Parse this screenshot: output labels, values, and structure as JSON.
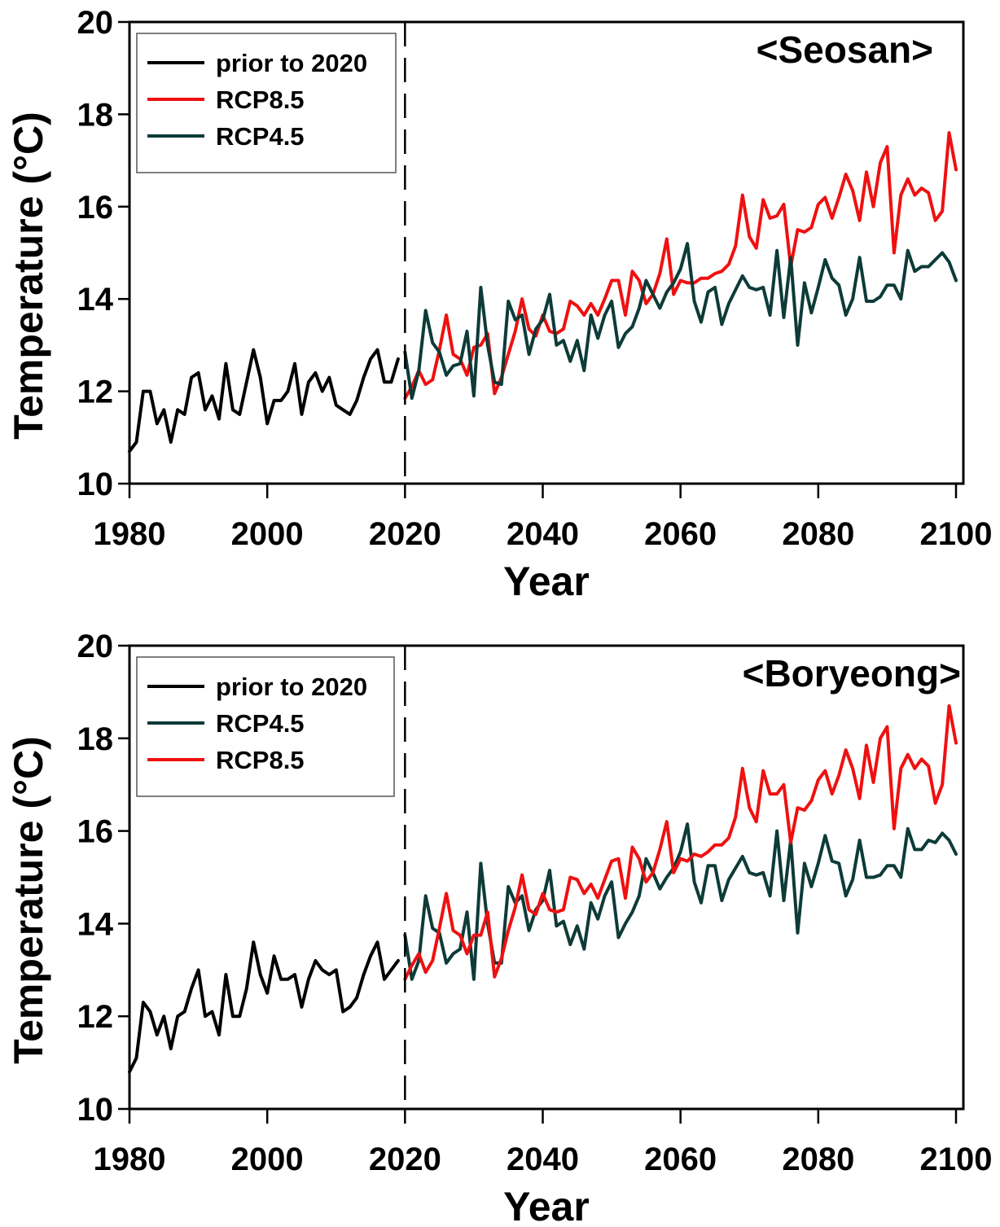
{
  "chart_data": [
    {
      "type": "line",
      "title": "<Seosan>",
      "xlabel": "Year",
      "ylabel": "Temperature (°C)",
      "xlim": [
        1980,
        2100
      ],
      "ylim": [
        10,
        20
      ],
      "xticks": [
        "1980",
        "2000",
        "2020",
        "2040",
        "2060",
        "2080",
        "2100"
      ],
      "yticks": [
        "10",
        "12",
        "14",
        "16",
        "18",
        "20"
      ],
      "grid": false,
      "legend_position": "top-left",
      "divider_year": 2020,
      "legend": [
        "prior to 2020",
        "RCP8.5",
        "RCP4.5"
      ],
      "series": [
        {
          "name": "prior to 2020",
          "color": "#000000",
          "x_start": 1980,
          "values": [
            10.7,
            10.9,
            12.0,
            12.0,
            11.3,
            11.6,
            10.9,
            11.6,
            11.5,
            12.3,
            12.4,
            11.6,
            11.9,
            11.4,
            12.6,
            11.6,
            11.5,
            12.2,
            12.9,
            12.3,
            11.3,
            11.8,
            11.8,
            12.0,
            12.6,
            11.5,
            12.2,
            12.4,
            12.0,
            12.3,
            11.7,
            11.6,
            11.5,
            11.8,
            12.3,
            12.7,
            12.9,
            12.2,
            12.2,
            12.7
          ]
        },
        {
          "name": "RCP8.5",
          "color": "#ee1111",
          "x_start": 2020,
          "values": [
            11.85,
            12.1,
            12.45,
            12.15,
            12.25,
            12.9,
            13.65,
            12.8,
            12.7,
            12.35,
            12.95,
            13.0,
            13.25,
            11.95,
            12.3,
            12.8,
            13.3,
            14.0,
            13.35,
            13.2,
            13.65,
            13.3,
            13.25,
            13.35,
            13.95,
            13.85,
            13.65,
            13.9,
            13.65,
            14.0,
            14.4,
            14.4,
            13.65,
            14.6,
            14.4,
            13.9,
            14.1,
            14.55,
            15.3,
            14.1,
            14.4,
            14.35,
            14.35,
            14.45,
            14.45,
            14.55,
            14.6,
            14.75,
            15.15,
            16.25,
            15.35,
            15.1,
            16.15,
            15.75,
            15.8,
            16.05,
            14.7,
            15.5,
            15.45,
            15.55,
            16.05,
            16.2,
            15.75,
            16.2,
            16.7,
            16.35,
            15.7,
            16.75,
            16.0,
            16.95,
            17.3,
            15.0,
            16.25,
            16.6,
            16.25,
            16.4,
            16.3,
            15.7,
            15.9,
            17.6,
            16.8
          ]
        },
        {
          "name": "RCP4.5",
          "color": "#0d3b38",
          "x_start": 2020,
          "values": [
            12.85,
            11.85,
            12.45,
            13.75,
            13.05,
            12.85,
            12.35,
            12.55,
            12.6,
            13.3,
            11.9,
            14.25,
            13.0,
            12.2,
            12.15,
            13.95,
            13.55,
            13.65,
            12.8,
            13.35,
            13.55,
            14.1,
            13.0,
            13.1,
            12.65,
            13.1,
            12.45,
            13.65,
            13.15,
            13.65,
            13.95,
            12.95,
            13.25,
            13.4,
            13.8,
            14.4,
            14.1,
            13.8,
            14.15,
            14.35,
            14.65,
            15.2,
            13.95,
            13.5,
            14.15,
            14.25,
            13.45,
            13.9,
            14.2,
            14.5,
            14.25,
            14.2,
            14.25,
            13.65,
            15.05,
            13.6,
            14.9,
            13.0,
            14.35,
            13.7,
            14.25,
            14.85,
            14.45,
            14.3,
            13.65,
            14.0,
            14.9,
            13.95,
            13.95,
            14.05,
            14.3,
            14.3,
            14.0,
            15.05,
            14.6,
            14.7,
            14.7,
            14.85,
            15.0,
            14.8,
            14.4
          ]
        }
      ]
    },
    {
      "type": "line",
      "title": "<Boryeong>",
      "xlabel": "Year",
      "ylabel": "Temperature (°C)",
      "xlim": [
        1980,
        2100
      ],
      "ylim": [
        10,
        20
      ],
      "xticks": [
        "1980",
        "2000",
        "2020",
        "2040",
        "2060",
        "2080",
        "2100"
      ],
      "yticks": [
        "10",
        "12",
        "14",
        "16",
        "18",
        "20"
      ],
      "grid": false,
      "legend_position": "top-left",
      "divider_year": 2020,
      "legend": [
        "prior to 2020",
        "RCP4.5",
        "RCP8.5"
      ],
      "series": [
        {
          "name": "prior to 2020",
          "color": "#000000",
          "x_start": 1980,
          "values": [
            10.8,
            11.1,
            12.3,
            12.1,
            11.6,
            12.0,
            11.3,
            12.0,
            12.1,
            12.6,
            13.0,
            12.0,
            12.1,
            11.6,
            12.9,
            12.0,
            12.0,
            12.6,
            13.6,
            12.9,
            12.5,
            13.3,
            12.8,
            12.8,
            12.9,
            12.2,
            12.8,
            13.2,
            13.0,
            12.9,
            13.0,
            12.1,
            12.2,
            12.4,
            12.9,
            13.3,
            13.6,
            12.8,
            13.0,
            13.2
          ]
        },
        {
          "name": "RCP4.5",
          "color": "#0d3b38",
          "x_start": 2020,
          "values": [
            13.75,
            12.8,
            13.2,
            14.6,
            13.9,
            13.8,
            13.15,
            13.35,
            13.45,
            14.25,
            12.8,
            15.3,
            14.0,
            13.15,
            13.15,
            14.8,
            14.45,
            14.6,
            13.85,
            14.3,
            14.5,
            15.15,
            13.95,
            14.05,
            13.55,
            13.95,
            13.45,
            14.45,
            14.1,
            14.6,
            14.9,
            13.7,
            14.0,
            14.25,
            14.6,
            15.4,
            15.1,
            14.75,
            15.0,
            15.2,
            15.55,
            16.15,
            14.9,
            14.45,
            15.25,
            15.25,
            14.5,
            14.95,
            15.2,
            15.45,
            15.1,
            15.05,
            15.1,
            14.6,
            16.0,
            14.5,
            15.8,
            13.8,
            15.3,
            14.8,
            15.3,
            15.9,
            15.35,
            15.3,
            14.6,
            14.95,
            15.8,
            15.0,
            15.0,
            15.05,
            15.25,
            15.25,
            15.0,
            16.05,
            15.6,
            15.6,
            15.8,
            15.75,
            15.95,
            15.8,
            15.5
          ]
        },
        {
          "name": "RCP8.5",
          "color": "#ee1111",
          "x_start": 2020,
          "values": [
            12.8,
            13.1,
            13.35,
            12.95,
            13.2,
            13.9,
            14.65,
            13.85,
            13.75,
            13.35,
            13.75,
            13.75,
            14.25,
            12.85,
            13.25,
            13.85,
            14.35,
            15.05,
            14.3,
            14.2,
            14.65,
            14.3,
            14.25,
            14.3,
            15.0,
            14.95,
            14.65,
            14.85,
            14.55,
            14.95,
            15.35,
            15.4,
            14.55,
            15.65,
            15.4,
            14.9,
            15.1,
            15.6,
            16.2,
            15.1,
            15.4,
            15.35,
            15.5,
            15.45,
            15.55,
            15.7,
            15.7,
            15.85,
            16.3,
            17.35,
            16.5,
            16.2,
            17.3,
            16.8,
            16.8,
            17.0,
            15.75,
            16.5,
            16.45,
            16.65,
            17.1,
            17.3,
            16.8,
            17.2,
            17.75,
            17.35,
            16.7,
            17.85,
            17.05,
            18.0,
            18.25,
            16.05,
            17.35,
            17.65,
            17.35,
            17.55,
            17.4,
            16.6,
            17.0,
            18.7,
            17.9
          ]
        }
      ]
    }
  ]
}
